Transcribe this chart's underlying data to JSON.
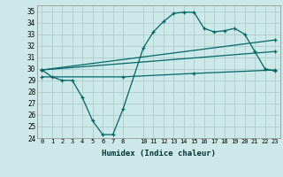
{
  "xlabel": "Humidex (Indice chaleur)",
  "ylabel": "",
  "bg_color": "#cce8e8",
  "grid_color": "#b0d0d0",
  "line_color": "#006666",
  "xlim": [
    -0.5,
    23.5
  ],
  "ylim": [
    24,
    35.5
  ],
  "yticks": [
    24,
    25,
    26,
    27,
    28,
    29,
    30,
    31,
    32,
    33,
    34,
    35
  ],
  "xticks": [
    0,
    1,
    2,
    3,
    4,
    5,
    6,
    7,
    8,
    10,
    11,
    12,
    13,
    14,
    15,
    16,
    17,
    18,
    19,
    20,
    21,
    22,
    23
  ],
  "series": [
    {
      "x": [
        0,
        1,
        2,
        3,
        4,
        5,
        6,
        7,
        8,
        10,
        11,
        12,
        13,
        14,
        15,
        16,
        17,
        18,
        19,
        20,
        21,
        22,
        23
      ],
      "y": [
        29.9,
        29.3,
        29.0,
        29.0,
        27.5,
        25.5,
        24.3,
        24.3,
        26.5,
        31.8,
        33.2,
        34.1,
        34.8,
        34.9,
        34.9,
        33.5,
        33.2,
        33.3,
        33.5,
        33.0,
        31.5,
        30.0,
        29.8
      ]
    },
    {
      "x": [
        0,
        23
      ],
      "y": [
        29.9,
        32.5
      ]
    },
    {
      "x": [
        0,
        23
      ],
      "y": [
        29.9,
        31.5
      ]
    },
    {
      "x": [
        0,
        8,
        15,
        23
      ],
      "y": [
        29.3,
        29.3,
        29.6,
        29.9
      ]
    }
  ]
}
